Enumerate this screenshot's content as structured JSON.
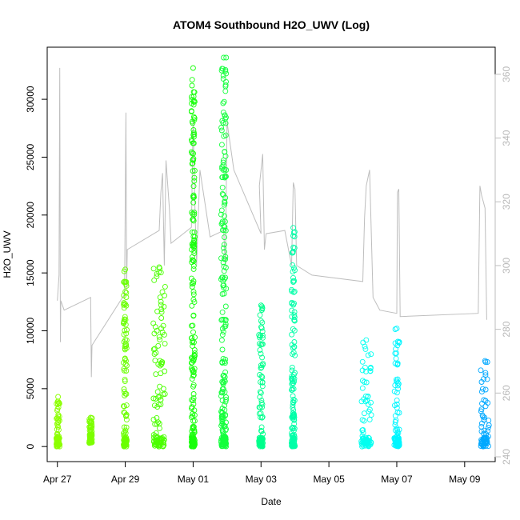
{
  "chart_data": {
    "type": "scatter",
    "title": "ATOM4 Southbound H2O_UWV (Log)",
    "xlabel": "Date",
    "ylabel": "H2O_UWV",
    "x_unit": "days since Apr 27",
    "xlim": [
      -0.3,
      12.9
    ],
    "ylim": [
      -1300,
      34500
    ],
    "y2lim": [
      238.5,
      368.5
    ],
    "x_ticks": [
      {
        "value": 0,
        "label": "Apr 27"
      },
      {
        "value": 2,
        "label": "Apr 29"
      },
      {
        "value": 4,
        "label": "May 01"
      },
      {
        "value": 6,
        "label": "May 03"
      },
      {
        "value": 8,
        "label": "May 05"
      },
      {
        "value": 10,
        "label": "May 07"
      },
      {
        "value": 12,
        "label": "May 09"
      }
    ],
    "y_ticks": [
      0,
      5000,
      10000,
      15000,
      20000,
      25000,
      30000
    ],
    "y2_ticks": [
      240,
      260,
      280,
      300,
      320,
      340,
      360
    ],
    "scatter_series": [
      {
        "name": "Apr 27",
        "x": 0.02,
        "xspan": 0.1,
        "min": 0,
        "max": 4300,
        "color": "#8cff00"
      },
      {
        "name": "Apr 28",
        "x": 0.98,
        "xspan": 0.08,
        "min": 300,
        "max": 2500,
        "color": "#7dff00"
      },
      {
        "name": "Apr 29",
        "x": 2.0,
        "xspan": 0.1,
        "min": 0,
        "max": 15300,
        "color": "#6aff00"
      },
      {
        "name": "Apr 30",
        "x": 3.0,
        "xspan": 0.35,
        "min": 0,
        "max": 15500,
        "color": "#4bff00"
      },
      {
        "name": "May 01",
        "x": 4.0,
        "xspan": 0.1,
        "min": 0,
        "max": 32700,
        "color": "#19ff0c"
      },
      {
        "name": "May 02",
        "x": 4.9,
        "xspan": 0.15,
        "min": 0,
        "max": 33600,
        "color": "#14ff3c"
      },
      {
        "name": "May 03",
        "x": 6.0,
        "xspan": 0.12,
        "min": 0,
        "max": 12200,
        "color": "#00ff8c"
      },
      {
        "name": "May 04",
        "x": 6.95,
        "xspan": 0.1,
        "min": 0,
        "max": 18900,
        "color": "#00ffa8"
      },
      {
        "name": "May 06",
        "x": 9.1,
        "xspan": 0.3,
        "min": 0,
        "max": 9200,
        "color": "#00fff0"
      },
      {
        "name": "May 07",
        "x": 10.0,
        "xspan": 0.15,
        "min": 0,
        "max": 10200,
        "color": "#00f6ff"
      },
      {
        "name": "May 09",
        "x": 12.6,
        "xspan": 0.25,
        "min": 0,
        "max": 7400,
        "color": "#00a8ff"
      }
    ],
    "line_series": {
      "name": "secondary (gray)",
      "axis": "right",
      "color": "#bebebe",
      "points": [
        [
          0.0,
          289
        ],
        [
          0.05,
          297
        ],
        [
          0.07,
          362
        ],
        [
          0.09,
          276
        ],
        [
          0.1,
          289
        ],
        [
          0.2,
          286
        ],
        [
          0.98,
          290
        ],
        [
          1.0,
          265
        ],
        [
          1.02,
          275
        ],
        [
          1.98,
          291
        ],
        [
          2.02,
          348
        ],
        [
          2.04,
          293
        ],
        [
          2.06,
          305
        ],
        [
          3.0,
          311
        ],
        [
          3.05,
          323
        ],
        [
          3.1,
          329
        ],
        [
          3.15,
          300
        ],
        [
          3.2,
          333
        ],
        [
          3.3,
          318
        ],
        [
          3.35,
          307
        ],
        [
          3.95,
          312
        ],
        [
          4.0,
          346
        ],
        [
          4.05,
          320
        ],
        [
          4.1,
          300
        ],
        [
          4.2,
          330
        ],
        [
          4.5,
          309
        ],
        [
          4.9,
          311
        ],
        [
          4.95,
          300
        ],
        [
          5.0,
          345
        ],
        [
          5.2,
          330
        ],
        [
          6.0,
          310
        ],
        [
          5.95,
          325
        ],
        [
          6.05,
          335
        ],
        [
          6.1,
          305
        ],
        [
          6.15,
          310
        ],
        [
          6.7,
          311
        ],
        [
          6.9,
          300
        ],
        [
          6.95,
          326
        ],
        [
          7.0,
          324
        ],
        [
          7.05,
          300
        ],
        [
          7.5,
          297
        ],
        [
          9.0,
          295
        ],
        [
          9.05,
          315
        ],
        [
          9.1,
          325
        ],
        [
          9.2,
          330
        ],
        [
          9.3,
          290
        ],
        [
          9.5,
          286
        ],
        [
          10.0,
          285
        ],
        [
          10.02,
          323
        ],
        [
          10.06,
          324
        ],
        [
          10.1,
          284
        ],
        [
          12.4,
          285
        ],
        [
          12.45,
          325
        ],
        [
          12.5,
          322
        ],
        [
          12.55,
          320
        ],
        [
          12.6,
          318
        ],
        [
          12.65,
          283
        ]
      ]
    }
  }
}
